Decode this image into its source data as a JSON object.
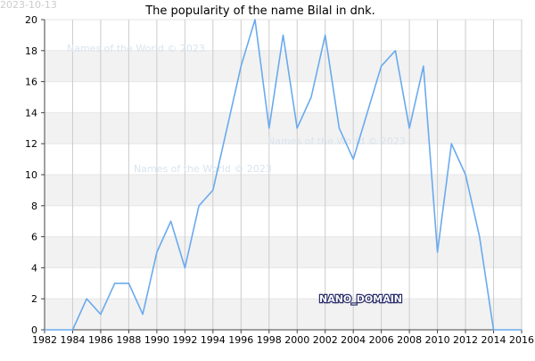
{
  "colors": {
    "line": "#6aaaee",
    "band": "#f2f2f2",
    "gridline": "#cccccc",
    "axis": "#444444"
  },
  "chart_data": {
    "type": "line",
    "title": "The popularity of the name Bilal in dnk.",
    "date_stamp": "2023-10-13",
    "watermarks": [
      "Names of the World © 2023",
      "Names of the World © 2023",
      "Names of the World © 2023"
    ],
    "overlay_label": "NANO_DOMAIN",
    "xlabel": "",
    "ylabel": "",
    "xlim": [
      1982,
      2016
    ],
    "ylim": [
      0,
      20
    ],
    "x_ticks": [
      1982,
      1984,
      1986,
      1988,
      1990,
      1992,
      1994,
      1996,
      1998,
      2000,
      2002,
      2004,
      2006,
      2008,
      2010,
      2012,
      2014,
      2016
    ],
    "y_ticks": [
      0,
      2,
      4,
      6,
      8,
      10,
      12,
      14,
      16,
      18,
      20
    ],
    "grid": true,
    "legend": "none",
    "series": [
      {
        "x": [
          1982,
          1983,
          1984,
          1985,
          1986,
          1987,
          1988,
          1989,
          1990,
          1991,
          1992,
          1993,
          1994,
          1995,
          1996,
          1997,
          1998,
          1999,
          2000,
          2001,
          2002,
          2003,
          2004,
          2005,
          2006,
          2007,
          2008,
          2009,
          2010,
          2011,
          2012,
          2013,
          2014,
          2015,
          2016
        ],
        "values": [
          0,
          0,
          0,
          2,
          1,
          3,
          3,
          1,
          5,
          7,
          4,
          8,
          9,
          13,
          17,
          20,
          13,
          19,
          13,
          15,
          19,
          13,
          11,
          14,
          17,
          18,
          13,
          17,
          5,
          12,
          10,
          6,
          0,
          0,
          0
        ]
      }
    ]
  }
}
